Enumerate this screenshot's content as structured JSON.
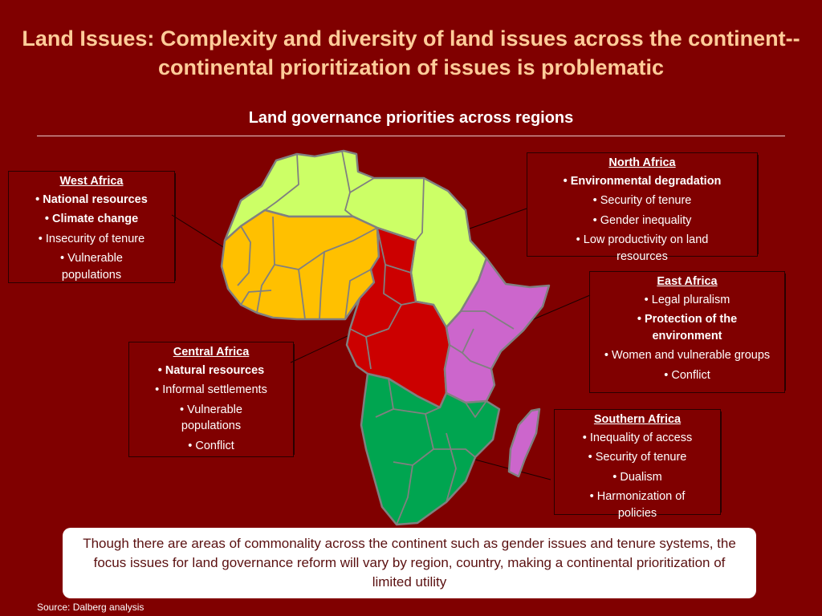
{
  "title": "Land Issues: Complexity and diversity of land issues across the continent--continental prioritization of issues is problematic",
  "subtitle": "Land governance priorities across regions",
  "regions": {
    "west": {
      "name": "West Africa",
      "items": [
        {
          "text": "National resources",
          "bold": true
        },
        {
          "text": "Climate change",
          "bold": true
        },
        {
          "text": "Insecurity of tenure",
          "bold": false
        },
        {
          "text": "Vulnerable populations",
          "bold": false
        }
      ]
    },
    "north": {
      "name": "North Africa",
      "items": [
        {
          "text": "Environmental degradation",
          "bold": true
        },
        {
          "text": "Security of tenure",
          "bold": false
        },
        {
          "text": "Gender inequality",
          "bold": false
        },
        {
          "text": "Low productivity on land resources",
          "bold": false
        }
      ]
    },
    "east": {
      "name": "East Africa",
      "items": [
        {
          "text": "Legal pluralism",
          "bold": false
        },
        {
          "text": "Protection of the environment",
          "bold": true
        },
        {
          "text": "Women and vulnerable groups",
          "bold": false
        },
        {
          "text": "Conflict",
          "bold": false
        }
      ]
    },
    "central": {
      "name": "Central Africa",
      "items": [
        {
          "text": "Natural resources",
          "bold": true
        },
        {
          "text": "Informal settlements",
          "bold": false
        },
        {
          "text": "Vulnerable populations",
          "bold": false
        },
        {
          "text": "Conflict",
          "bold": false
        }
      ]
    },
    "southern": {
      "name": "Southern Africa",
      "items": [
        {
          "text": "Inequality of access",
          "bold": false
        },
        {
          "text": "Security of tenure",
          "bold": false
        },
        {
          "text": "Dualism",
          "bold": false
        },
        {
          "text": "Harmonization of policies",
          "bold": false
        }
      ]
    }
  },
  "map_colors": {
    "north": "#CCFF66",
    "west": "#FFC000",
    "central": "#CC0000",
    "east": "#CC66CC",
    "southern": "#00A550",
    "borders": "#808080"
  },
  "note": "Though there are areas of commonality across the continent such as gender issues and tenure systems, the focus issues for land governance reform will vary by region, country, making a continental prioritization of limited utility",
  "source": "Source: Dalberg analysis"
}
